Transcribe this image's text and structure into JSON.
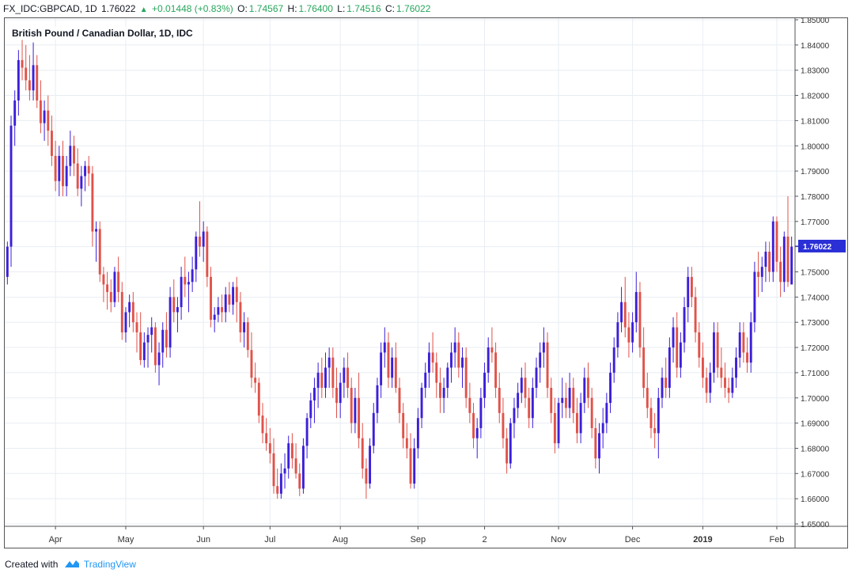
{
  "header": {
    "symbol": "FX_IDC:GBPCAD, 1D",
    "last": "1.76022",
    "arrow": "▲",
    "change": "+0.01448 (+0.83%)",
    "o_label": "O:",
    "o_value": "1.74567",
    "h_label": "H:",
    "h_value": "1.76400",
    "l_label": "L:",
    "l_value": "1.74516",
    "c_label": "C:",
    "c_value": "1.76022"
  },
  "footer": {
    "created_with": "Created with",
    "brand": "TradingView"
  },
  "colors": {
    "up": "#3b1fd9",
    "down": "#e0524a",
    "grid": "#e8edf3",
    "last_price_bg": "#2a2fd6",
    "brand": "#2196f3"
  },
  "chart_data": {
    "type": "candlestick",
    "title": "British Pound / Canadian Dollar, 1D, IDC",
    "ylim": [
      1.65,
      1.85
    ],
    "y_ticks": [
      "1.65000",
      "1.66000",
      "1.67000",
      "1.68000",
      "1.69000",
      "1.70000",
      "1.71000",
      "1.72000",
      "1.73000",
      "1.74000",
      "1.75000",
      "1.76000",
      "1.77000",
      "1.78000",
      "1.79000",
      "1.80000",
      "1.81000",
      "1.82000",
      "1.83000",
      "1.84000",
      "1.85000"
    ],
    "x_ticks": [
      {
        "label": "Apr",
        "index": 13,
        "bold": false
      },
      {
        "label": "May",
        "index": 32,
        "bold": false
      },
      {
        "label": "Jun",
        "index": 53,
        "bold": false
      },
      {
        "label": "Jul",
        "index": 71,
        "bold": false
      },
      {
        "label": "Aug",
        "index": 90,
        "bold": false
      },
      {
        "label": "Sep",
        "index": 111,
        "bold": false
      },
      {
        "label": "2",
        "index": 129,
        "bold": false
      },
      {
        "label": "Nov",
        "index": 149,
        "bold": false
      },
      {
        "label": "Dec",
        "index": 169,
        "bold": false
      },
      {
        "label": "2019",
        "index": 188,
        "bold": true
      },
      {
        "label": "Feb",
        "index": 208,
        "bold": false
      }
    ],
    "last_price": 1.76022,
    "last_price_label": "1.76022",
    "ohlc": [
      [
        1.748,
        1.762,
        1.745,
        1.76
      ],
      [
        1.76,
        1.812,
        1.752,
        1.808
      ],
      [
        1.808,
        1.822,
        1.8,
        1.818
      ],
      [
        1.818,
        1.838,
        1.812,
        1.834
      ],
      [
        1.834,
        1.842,
        1.826,
        1.831
      ],
      [
        1.831,
        1.84,
        1.822,
        1.826
      ],
      [
        1.826,
        1.836,
        1.818,
        1.822
      ],
      [
        1.822,
        1.841,
        1.818,
        1.832
      ],
      [
        1.832,
        1.836,
        1.815,
        1.818
      ],
      [
        1.818,
        1.826,
        1.805,
        1.809
      ],
      [
        1.809,
        1.818,
        1.802,
        1.814
      ],
      [
        1.814,
        1.82,
        1.8,
        1.806
      ],
      [
        1.806,
        1.812,
        1.792,
        1.796
      ],
      [
        1.796,
        1.802,
        1.782,
        1.786
      ],
      [
        1.786,
        1.8,
        1.78,
        1.796
      ],
      [
        1.796,
        1.802,
        1.78,
        1.784
      ],
      [
        1.784,
        1.796,
        1.78,
        1.792
      ],
      [
        1.792,
        1.806,
        1.788,
        1.8
      ],
      [
        1.8,
        1.804,
        1.788,
        1.793
      ],
      [
        1.793,
        1.799,
        1.78,
        1.783
      ],
      [
        1.783,
        1.792,
        1.776,
        1.788
      ],
      [
        1.788,
        1.794,
        1.782,
        1.792
      ],
      [
        1.792,
        1.796,
        1.784,
        1.789
      ],
      [
        1.789,
        1.792,
        1.76,
        1.766
      ],
      [
        1.766,
        1.77,
        1.754,
        1.767
      ],
      [
        1.767,
        1.77,
        1.746,
        1.749
      ],
      [
        1.749,
        1.752,
        1.738,
        1.745
      ],
      [
        1.745,
        1.75,
        1.735,
        1.742
      ],
      [
        1.742,
        1.747,
        1.734,
        1.738
      ],
      [
        1.738,
        1.752,
        1.736,
        1.75
      ],
      [
        1.75,
        1.756,
        1.738,
        1.742
      ],
      [
        1.742,
        1.746,
        1.723,
        1.726
      ],
      [
        1.726,
        1.736,
        1.722,
        1.734
      ],
      [
        1.734,
        1.741,
        1.728,
        1.738
      ],
      [
        1.738,
        1.742,
        1.726,
        1.73
      ],
      [
        1.73,
        1.734,
        1.718,
        1.726
      ],
      [
        1.726,
        1.734,
        1.713,
        1.715
      ],
      [
        1.715,
        1.726,
        1.712,
        1.722
      ],
      [
        1.722,
        1.728,
        1.712,
        1.725
      ],
      [
        1.725,
        1.732,
        1.718,
        1.728
      ],
      [
        1.728,
        1.73,
        1.71,
        1.713
      ],
      [
        1.713,
        1.722,
        1.705,
        1.718
      ],
      [
        1.718,
        1.73,
        1.712,
        1.727
      ],
      [
        1.727,
        1.734,
        1.716,
        1.72
      ],
      [
        1.72,
        1.744,
        1.716,
        1.74
      ],
      [
        1.74,
        1.747,
        1.73,
        1.734
      ],
      [
        1.734,
        1.74,
        1.726,
        1.736
      ],
      [
        1.736,
        1.752,
        1.731,
        1.748
      ],
      [
        1.748,
        1.756,
        1.74,
        1.745
      ],
      [
        1.745,
        1.75,
        1.734,
        1.746
      ],
      [
        1.746,
        1.756,
        1.742,
        1.751
      ],
      [
        1.751,
        1.766,
        1.746,
        1.764
      ],
      [
        1.764,
        1.778,
        1.756,
        1.76
      ],
      [
        1.76,
        1.77,
        1.754,
        1.766
      ],
      [
        1.766,
        1.768,
        1.744,
        1.748
      ],
      [
        1.748,
        1.752,
        1.728,
        1.731
      ],
      [
        1.731,
        1.736,
        1.726,
        1.733
      ],
      [
        1.733,
        1.74,
        1.73,
        1.736
      ],
      [
        1.736,
        1.741,
        1.73,
        1.734
      ],
      [
        1.734,
        1.744,
        1.73,
        1.741
      ],
      [
        1.741,
        1.746,
        1.734,
        1.737
      ],
      [
        1.737,
        1.746,
        1.733,
        1.744
      ],
      [
        1.744,
        1.748,
        1.73,
        1.738
      ],
      [
        1.738,
        1.742,
        1.722,
        1.726
      ],
      [
        1.726,
        1.734,
        1.72,
        1.73
      ],
      [
        1.73,
        1.732,
        1.716,
        1.719
      ],
      [
        1.719,
        1.726,
        1.704,
        1.708
      ],
      [
        1.708,
        1.714,
        1.702,
        1.706
      ],
      [
        1.706,
        1.708,
        1.69,
        1.693
      ],
      [
        1.693,
        1.698,
        1.682,
        1.686
      ],
      [
        1.686,
        1.692,
        1.679,
        1.682
      ],
      [
        1.682,
        1.688,
        1.674,
        1.678
      ],
      [
        1.678,
        1.684,
        1.662,
        1.665
      ],
      [
        1.665,
        1.672,
        1.66,
        1.662
      ],
      [
        1.662,
        1.674,
        1.66,
        1.67
      ],
      [
        1.67,
        1.678,
        1.664,
        1.672
      ],
      [
        1.672,
        1.685,
        1.668,
        1.682
      ],
      [
        1.682,
        1.686,
        1.672,
        1.676
      ],
      [
        1.676,
        1.682,
        1.668,
        1.67
      ],
      [
        1.67,
        1.674,
        1.661,
        1.664
      ],
      [
        1.664,
        1.684,
        1.662,
        1.681
      ],
      [
        1.681,
        1.694,
        1.676,
        1.692
      ],
      [
        1.692,
        1.702,
        1.688,
        1.699
      ],
      [
        1.699,
        1.708,
        1.69,
        1.704
      ],
      [
        1.704,
        1.714,
        1.696,
        1.71
      ],
      [
        1.71,
        1.716,
        1.7,
        1.704
      ],
      [
        1.704,
        1.718,
        1.7,
        1.712
      ],
      [
        1.712,
        1.72,
        1.704,
        1.716
      ],
      [
        1.716,
        1.72,
        1.7,
        1.704
      ],
      [
        1.704,
        1.712,
        1.692,
        1.698
      ],
      [
        1.698,
        1.71,
        1.692,
        1.706
      ],
      [
        1.706,
        1.716,
        1.7,
        1.712
      ],
      [
        1.712,
        1.718,
        1.7,
        1.704
      ],
      [
        1.704,
        1.708,
        1.686,
        1.69
      ],
      [
        1.69,
        1.704,
        1.686,
        1.7
      ],
      [
        1.7,
        1.71,
        1.68,
        1.684
      ],
      [
        1.684,
        1.69,
        1.668,
        1.672
      ],
      [
        1.672,
        1.676,
        1.66,
        1.666
      ],
      [
        1.666,
        1.684,
        1.664,
        1.681
      ],
      [
        1.681,
        1.698,
        1.678,
        1.694
      ],
      [
        1.694,
        1.708,
        1.69,
        1.705
      ],
      [
        1.705,
        1.722,
        1.7,
        1.718
      ],
      [
        1.718,
        1.728,
        1.712,
        1.722
      ],
      [
        1.722,
        1.726,
        1.704,
        1.708
      ],
      [
        1.708,
        1.72,
        1.704,
        1.716
      ],
      [
        1.716,
        1.722,
        1.702,
        1.704
      ],
      [
        1.704,
        1.708,
        1.69,
        1.694
      ],
      [
        1.694,
        1.698,
        1.68,
        1.684
      ],
      [
        1.684,
        1.69,
        1.676,
        1.68
      ],
      [
        1.68,
        1.686,
        1.664,
        1.666
      ],
      [
        1.666,
        1.684,
        1.664,
        1.68
      ],
      [
        1.68,
        1.696,
        1.676,
        1.692
      ],
      [
        1.692,
        1.706,
        1.688,
        1.704
      ],
      [
        1.704,
        1.714,
        1.7,
        1.71
      ],
      [
        1.71,
        1.722,
        1.704,
        1.718
      ],
      [
        1.718,
        1.726,
        1.71,
        1.714
      ],
      [
        1.714,
        1.718,
        1.7,
        1.706
      ],
      [
        1.706,
        1.712,
        1.694,
        1.7
      ],
      [
        1.7,
        1.708,
        1.694,
        1.704
      ],
      [
        1.704,
        1.714,
        1.7,
        1.712
      ],
      [
        1.712,
        1.722,
        1.706,
        1.718
      ],
      [
        1.718,
        1.728,
        1.712,
        1.722
      ],
      [
        1.722,
        1.726,
        1.708,
        1.712
      ],
      [
        1.712,
        1.72,
        1.704,
        1.716
      ],
      [
        1.716,
        1.72,
        1.696,
        1.7
      ],
      [
        1.7,
        1.706,
        1.69,
        1.694
      ],
      [
        1.694,
        1.698,
        1.68,
        1.684
      ],
      [
        1.684,
        1.692,
        1.676,
        1.688
      ],
      [
        1.688,
        1.704,
        1.684,
        1.7
      ],
      [
        1.7,
        1.714,
        1.696,
        1.71
      ],
      [
        1.71,
        1.724,
        1.706,
        1.72
      ],
      [
        1.72,
        1.728,
        1.714,
        1.718
      ],
      [
        1.718,
        1.722,
        1.7,
        1.704
      ],
      [
        1.704,
        1.71,
        1.69,
        1.694
      ],
      [
        1.694,
        1.7,
        1.68,
        1.684
      ],
      [
        1.684,
        1.688,
        1.67,
        1.674
      ],
      [
        1.674,
        1.692,
        1.672,
        1.69
      ],
      [
        1.69,
        1.7,
        1.684,
        1.696
      ],
      [
        1.696,
        1.706,
        1.692,
        1.702
      ],
      [
        1.702,
        1.712,
        1.698,
        1.708
      ],
      [
        1.708,
        1.714,
        1.696,
        1.7
      ],
      [
        1.7,
        1.704,
        1.688,
        1.692
      ],
      [
        1.692,
        1.708,
        1.688,
        1.704
      ],
      [
        1.704,
        1.716,
        1.7,
        1.712
      ],
      [
        1.712,
        1.722,
        1.706,
        1.718
      ],
      [
        1.718,
        1.728,
        1.712,
        1.722
      ],
      [
        1.722,
        1.726,
        1.7,
        1.704
      ],
      [
        1.704,
        1.708,
        1.69,
        1.694
      ],
      [
        1.694,
        1.7,
        1.678,
        1.682
      ],
      [
        1.682,
        1.7,
        1.68,
        1.698
      ],
      [
        1.698,
        1.708,
        1.692,
        1.7
      ],
      [
        1.7,
        1.706,
        1.692,
        1.696
      ],
      [
        1.696,
        1.71,
        1.692,
        1.704
      ],
      [
        1.704,
        1.708,
        1.69,
        1.694
      ],
      [
        1.694,
        1.7,
        1.682,
        1.686
      ],
      [
        1.686,
        1.702,
        1.682,
        1.698
      ],
      [
        1.698,
        1.712,
        1.694,
        1.708
      ],
      [
        1.708,
        1.714,
        1.696,
        1.7
      ],
      [
        1.7,
        1.704,
        1.684,
        1.688
      ],
      [
        1.688,
        1.692,
        1.672,
        1.676
      ],
      [
        1.676,
        1.69,
        1.67,
        1.686
      ],
      [
        1.686,
        1.696,
        1.68,
        1.69
      ],
      [
        1.69,
        1.702,
        1.686,
        1.698
      ],
      [
        1.698,
        1.714,
        1.694,
        1.71
      ],
      [
        1.71,
        1.724,
        1.706,
        1.72
      ],
      [
        1.72,
        1.734,
        1.716,
        1.73
      ],
      [
        1.73,
        1.744,
        1.726,
        1.738
      ],
      [
        1.738,
        1.748,
        1.724,
        1.728
      ],
      [
        1.728,
        1.734,
        1.716,
        1.722
      ],
      [
        1.722,
        1.734,
        1.718,
        1.73
      ],
      [
        1.73,
        1.75,
        1.726,
        1.742
      ],
      [
        1.742,
        1.746,
        1.716,
        1.72
      ],
      [
        1.72,
        1.728,
        1.7,
        1.704
      ],
      [
        1.704,
        1.71,
        1.692,
        1.696
      ],
      [
        1.696,
        1.7,
        1.684,
        1.688
      ],
      [
        1.688,
        1.694,
        1.68,
        1.686
      ],
      [
        1.686,
        1.704,
        1.676,
        1.7
      ],
      [
        1.7,
        1.712,
        1.696,
        1.708
      ],
      [
        1.708,
        1.716,
        1.7,
        1.704
      ],
      [
        1.704,
        1.724,
        1.7,
        1.72
      ],
      [
        1.72,
        1.732,
        1.714,
        1.728
      ],
      [
        1.728,
        1.734,
        1.708,
        1.712
      ],
      [
        1.712,
        1.726,
        1.708,
        1.722
      ],
      [
        1.722,
        1.74,
        1.718,
        1.736
      ],
      [
        1.736,
        1.752,
        1.73,
        1.748
      ],
      [
        1.748,
        1.752,
        1.736,
        1.74
      ],
      [
        1.74,
        1.744,
        1.722,
        1.726
      ],
      [
        1.726,
        1.73,
        1.712,
        1.716
      ],
      [
        1.716,
        1.722,
        1.704,
        1.708
      ],
      [
        1.708,
        1.712,
        1.698,
        1.702
      ],
      [
        1.702,
        1.714,
        1.698,
        1.71
      ],
      [
        1.71,
        1.73,
        1.706,
        1.726
      ],
      [
        1.726,
        1.73,
        1.708,
        1.712
      ],
      [
        1.712,
        1.72,
        1.704,
        1.708
      ],
      [
        1.708,
        1.714,
        1.7,
        1.704
      ],
      [
        1.704,
        1.708,
        1.698,
        1.702
      ],
      [
        1.702,
        1.712,
        1.7,
        1.708
      ],
      [
        1.708,
        1.72,
        1.704,
        1.716
      ],
      [
        1.716,
        1.73,
        1.712,
        1.726
      ],
      [
        1.726,
        1.73,
        1.714,
        1.718
      ],
      [
        1.718,
        1.724,
        1.71,
        1.714
      ],
      [
        1.714,
        1.734,
        1.71,
        1.73
      ],
      [
        1.73,
        1.754,
        1.726,
        1.75
      ],
      [
        1.75,
        1.758,
        1.74,
        1.748
      ],
      [
        1.748,
        1.756,
        1.742,
        1.752
      ],
      [
        1.752,
        1.762,
        1.746,
        1.758
      ],
      [
        1.758,
        1.762,
        1.746,
        1.75
      ],
      [
        1.75,
        1.772,
        1.746,
        1.77
      ],
      [
        1.77,
        1.772,
        1.75,
        1.754
      ],
      [
        1.754,
        1.76,
        1.74,
        1.746
      ],
      [
        1.746,
        1.766,
        1.742,
        1.764
      ],
      [
        1.764,
        1.78,
        1.744,
        1.746
      ],
      [
        1.745,
        1.764,
        1.745,
        1.76
      ]
    ]
  }
}
